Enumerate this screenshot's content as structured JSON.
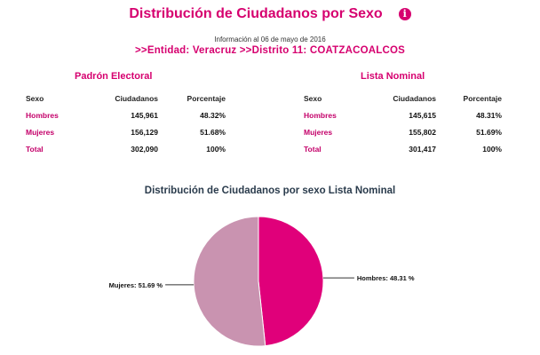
{
  "header": {
    "title": "Distribución de Ciudadanos por Sexo",
    "info_icon": "info-icon",
    "updated": "Información al 06 de mayo de 2016",
    "entity_line": ">>Entidad: Veracruz >>Distrito 11: COATZACOALCOS"
  },
  "padron": {
    "title": "Padrón Electoral",
    "columns": [
      "Sexo",
      "Ciudadanos",
      "Porcentaje"
    ],
    "rows": [
      {
        "label": "Hombres",
        "ciudadanos": "145,961",
        "porcentaje": "48.32%"
      },
      {
        "label": "Mujeres",
        "ciudadanos": "156,129",
        "porcentaje": "51.68%"
      },
      {
        "label": "Total",
        "ciudadanos": "302,090",
        "porcentaje": "100%"
      }
    ]
  },
  "lista": {
    "title": "Lista Nominal",
    "columns": [
      "Sexo",
      "Ciudadanos",
      "Porcentaje"
    ],
    "rows": [
      {
        "label": "Hombres",
        "ciudadanos": "145,615",
        "porcentaje": "48.31%"
      },
      {
        "label": "Mujeres",
        "ciudadanos": "155,802",
        "porcentaje": "51.69%"
      },
      {
        "label": "Total",
        "ciudadanos": "301,417",
        "porcentaje": "100%"
      }
    ]
  },
  "chart_data": {
    "type": "pie",
    "title": "Distribución de Ciudadanos por sexo Lista Nominal",
    "slices": [
      {
        "name": "Hombres",
        "value": 48.31,
        "label": "Hombres: 48.31 %",
        "color": "#e0007a"
      },
      {
        "name": "Mujeres",
        "value": 51.69,
        "label": "Mujeres: 51.69 %",
        "color": "#c993b0"
      }
    ]
  },
  "colors": {
    "accent": "#d6006f",
    "chart_title": "#2a3b4c"
  }
}
